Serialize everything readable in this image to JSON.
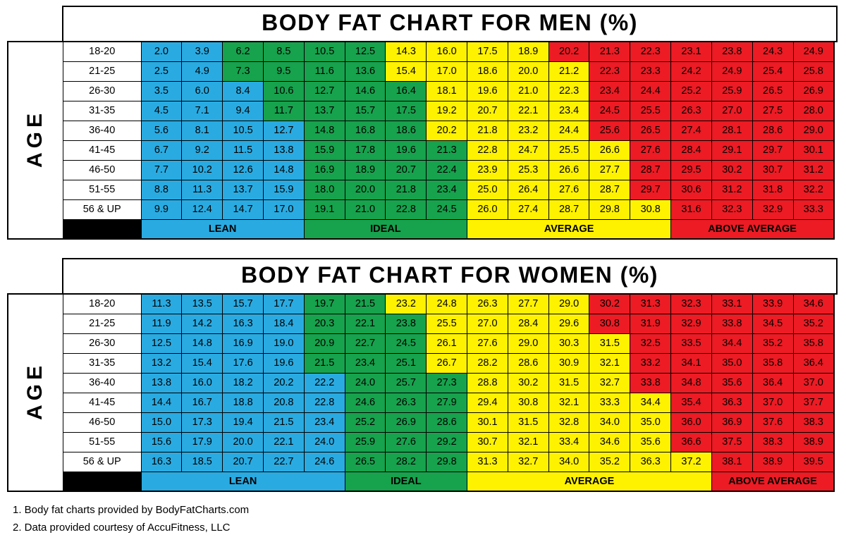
{
  "colors": {
    "background": "#FFFFFF",
    "border": "#000000",
    "text": "#000000",
    "legend_spacer": "#000000"
  },
  "categories": {
    "lean": {
      "label": "LEAN",
      "color": "#29ABE2"
    },
    "ideal": {
      "label": "IDEAL",
      "color": "#17A24D"
    },
    "average": {
      "label": "AVERAGE",
      "color": "#FFF200"
    },
    "above_average": {
      "label": "ABOVE AVERAGE",
      "color": "#EC1B24"
    }
  },
  "chart_data": [
    {
      "type": "heatmap",
      "title": "BODY FAT CHART FOR MEN (%)",
      "ylabel": "AGE",
      "legend_position": "bottom",
      "n_columns": 17,
      "band_order": [
        "lean",
        "ideal",
        "average",
        "above_average"
      ],
      "legend_spans": [
        4,
        4,
        5,
        4
      ],
      "row_labels": [
        "18-20",
        "21-25",
        "26-30",
        "31-35",
        "36-40",
        "41-45",
        "46-50",
        "51-55",
        "56 & UP"
      ],
      "values": [
        [
          "2.0",
          "3.9",
          "6.2",
          "8.5",
          "10.5",
          "12.5",
          "14.3",
          "16.0",
          "17.5",
          "18.9",
          "20.2",
          "21.3",
          "22.3",
          "23.1",
          "23.8",
          "24.3",
          "24.9"
        ],
        [
          "2.5",
          "4.9",
          "7.3",
          "9.5",
          "11.6",
          "13.6",
          "15.4",
          "17.0",
          "18.6",
          "20.0",
          "21.2",
          "22.3",
          "23.3",
          "24.2",
          "24.9",
          "25.4",
          "25.8"
        ],
        [
          "3.5",
          "6.0",
          "8.4",
          "10.6",
          "12.7",
          "14.6",
          "16.4",
          "18.1",
          "19.6",
          "21.0",
          "22.3",
          "23.4",
          "24.4",
          "25.2",
          "25.9",
          "26.5",
          "26.9"
        ],
        [
          "4.5",
          "7.1",
          "9.4",
          "11.7",
          "13.7",
          "15.7",
          "17.5",
          "19.2",
          "20.7",
          "22.1",
          "23.4",
          "24.5",
          "25.5",
          "26.3",
          "27.0",
          "27.5",
          "28.0"
        ],
        [
          "5.6",
          "8.1",
          "10.5",
          "12.7",
          "14.8",
          "16.8",
          "18.6",
          "20.2",
          "21.8",
          "23.2",
          "24.4",
          "25.6",
          "26.5",
          "27.4",
          "28.1",
          "28.6",
          "29.0"
        ],
        [
          "6.7",
          "9.2",
          "11.5",
          "13.8",
          "15.9",
          "17.8",
          "19.6",
          "21.3",
          "22.8",
          "24.7",
          "25.5",
          "26.6",
          "27.6",
          "28.4",
          "29.1",
          "29.7",
          "30.1"
        ],
        [
          "7.7",
          "10.2",
          "12.6",
          "14.8",
          "16.9",
          "18.9",
          "20.7",
          "22.4",
          "23.9",
          "25.3",
          "26.6",
          "27.7",
          "28.7",
          "29.5",
          "30.2",
          "30.7",
          "31.2"
        ],
        [
          "8.8",
          "11.3",
          "13.7",
          "15.9",
          "18.0",
          "20.0",
          "21.8",
          "23.4",
          "25.0",
          "26.4",
          "27.6",
          "28.7",
          "29.7",
          "30.6",
          "31.2",
          "31.8",
          "32.2"
        ],
        [
          "9.9",
          "12.4",
          "14.7",
          "17.0",
          "19.1",
          "21.0",
          "22.8",
          "24.5",
          "26.0",
          "27.4",
          "28.7",
          "29.8",
          "30.8",
          "31.6",
          "32.3",
          "32.9",
          "33.3"
        ]
      ],
      "row_bands": [
        [
          2,
          4,
          4,
          7
        ],
        [
          2,
          4,
          5,
          6
        ],
        [
          3,
          4,
          4,
          6
        ],
        [
          3,
          4,
          4,
          6
        ],
        [
          4,
          3,
          4,
          6
        ],
        [
          4,
          4,
          4,
          5
        ],
        [
          4,
          4,
          4,
          5
        ],
        [
          4,
          4,
          4,
          5
        ],
        [
          4,
          4,
          5,
          4
        ]
      ]
    },
    {
      "type": "heatmap",
      "title": "BODY FAT CHART FOR WOMEN (%)",
      "ylabel": "AGE",
      "legend_position": "bottom",
      "n_columns": 17,
      "band_order": [
        "lean",
        "ideal",
        "average",
        "above_average"
      ],
      "legend_spans": [
        5,
        3,
        6,
        3
      ],
      "row_labels": [
        "18-20",
        "21-25",
        "26-30",
        "31-35",
        "36-40",
        "41-45",
        "46-50",
        "51-55",
        "56 & UP"
      ],
      "values": [
        [
          "11.3",
          "13.5",
          "15.7",
          "17.7",
          "19.7",
          "21.5",
          "23.2",
          "24.8",
          "26.3",
          "27.7",
          "29.0",
          "30.2",
          "31.3",
          "32.3",
          "33.1",
          "33.9",
          "34.6"
        ],
        [
          "11.9",
          "14.2",
          "16.3",
          "18.4",
          "20.3",
          "22.1",
          "23.8",
          "25.5",
          "27.0",
          "28.4",
          "29.6",
          "30.8",
          "31.9",
          "32.9",
          "33.8",
          "34.5",
          "35.2"
        ],
        [
          "12.5",
          "14.8",
          "16.9",
          "19.0",
          "20.9",
          "22.7",
          "24.5",
          "26.1",
          "27.6",
          "29.0",
          "30.3",
          "31.5",
          "32.5",
          "33.5",
          "34.4",
          "35.2",
          "35.8"
        ],
        [
          "13.2",
          "15.4",
          "17.6",
          "19.6",
          "21.5",
          "23.4",
          "25.1",
          "26.7",
          "28.2",
          "28.6",
          "30.9",
          "32.1",
          "33.2",
          "34.1",
          "35.0",
          "35.8",
          "36.4"
        ],
        [
          "13.8",
          "16.0",
          "18.2",
          "20.2",
          "22.2",
          "24.0",
          "25.7",
          "27.3",
          "28.8",
          "30.2",
          "31.5",
          "32.7",
          "33.8",
          "34.8",
          "35.6",
          "36.4",
          "37.0"
        ],
        [
          "14.4",
          "16.7",
          "18.8",
          "20.8",
          "22.8",
          "24.6",
          "26.3",
          "27.9",
          "29.4",
          "30.8",
          "32.1",
          "33.3",
          "34.4",
          "35.4",
          "36.3",
          "37.0",
          "37.7"
        ],
        [
          "15.0",
          "17.3",
          "19.4",
          "21.5",
          "23.4",
          "25.2",
          "26.9",
          "28.6",
          "30.1",
          "31.5",
          "32.8",
          "34.0",
          "35.0",
          "36.0",
          "36.9",
          "37.6",
          "38.3"
        ],
        [
          "15.6",
          "17.9",
          "20.0",
          "22.1",
          "24.0",
          "25.9",
          "27.6",
          "29.2",
          "30.7",
          "32.1",
          "33.4",
          "34.6",
          "35.6",
          "36.6",
          "37.5",
          "38.3",
          "38.9"
        ],
        [
          "16.3",
          "18.5",
          "20.7",
          "22.7",
          "24.6",
          "26.5",
          "28.2",
          "29.8",
          "31.3",
          "32.7",
          "34.0",
          "35.2",
          "36.3",
          "37.2",
          "38.1",
          "38.9",
          "39.5"
        ]
      ],
      "row_bands": [
        [
          4,
          2,
          5,
          6
        ],
        [
          4,
          3,
          4,
          6
        ],
        [
          4,
          3,
          5,
          5
        ],
        [
          4,
          3,
          5,
          5
        ],
        [
          5,
          3,
          4,
          5
        ],
        [
          5,
          3,
          5,
          4
        ],
        [
          5,
          3,
          5,
          4
        ],
        [
          5,
          3,
          5,
          4
        ],
        [
          5,
          3,
          6,
          3
        ]
      ]
    }
  ],
  "footnotes": [
    "1. Body fat charts provided by BodyFatCharts.com",
    "2. Data provided courtesy of AccuFitness, LLC"
  ]
}
